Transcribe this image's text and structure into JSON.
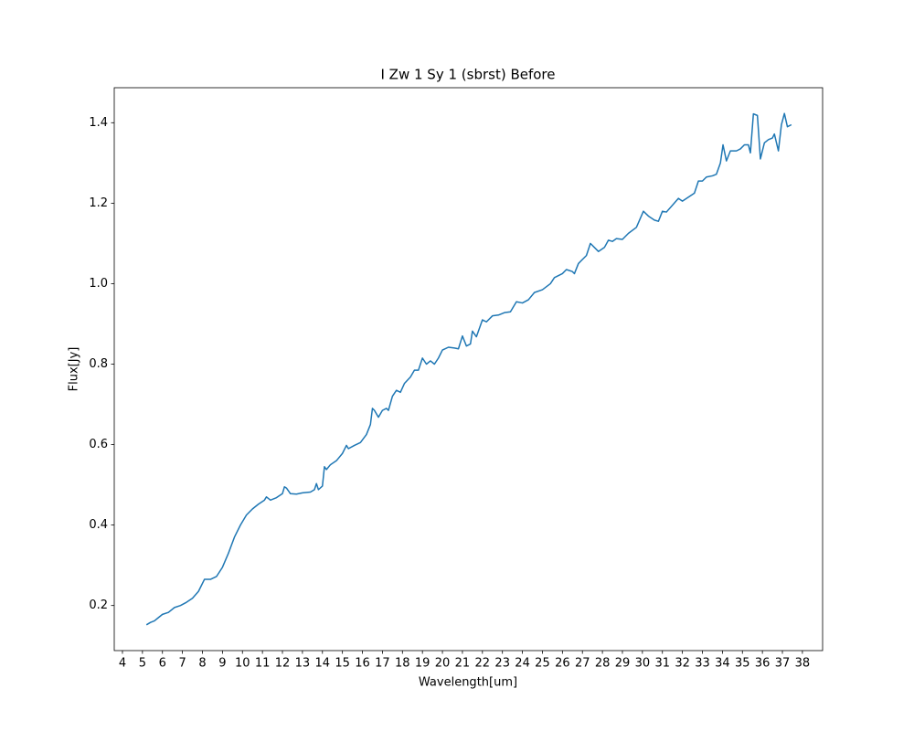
{
  "chart_data": {
    "type": "line",
    "title": "I Zw 1 Sy 1 (sbrst) Before",
    "x_label": "Wavelength[um]",
    "y_label": "Flux[Jy]",
    "x": [
      5.2,
      5.4,
      5.6,
      5.8,
      6.0,
      6.3,
      6.6,
      6.9,
      7.2,
      7.5,
      7.8,
      8.1,
      8.4,
      8.7,
      9.0,
      9.3,
      9.6,
      9.9,
      10.2,
      10.5,
      10.8,
      11.1,
      11.2,
      11.4,
      11.7,
      12.0,
      12.1,
      12.2,
      12.4,
      12.7,
      13.0,
      13.4,
      13.6,
      13.7,
      13.8,
      14.0,
      14.1,
      14.2,
      14.4,
      14.7,
      15.0,
      15.2,
      15.3,
      15.6,
      15.9,
      16.2,
      16.4,
      16.5,
      16.6,
      16.8,
      17.0,
      17.2,
      17.3,
      17.5,
      17.7,
      17.9,
      18.1,
      18.4,
      18.6,
      18.8,
      19.0,
      19.2,
      19.4,
      19.6,
      19.8,
      20.0,
      20.3,
      20.6,
      20.8,
      21.0,
      21.2,
      21.4,
      21.5,
      21.7,
      22.0,
      22.2,
      22.5,
      22.8,
      23.1,
      23.4,
      23.7,
      24.0,
      24.3,
      24.6,
      25.0,
      25.4,
      25.6,
      26.0,
      26.2,
      26.5,
      26.6,
      26.8,
      27.2,
      27.4,
      27.6,
      27.8,
      28.1,
      28.3,
      28.5,
      28.7,
      29.0,
      29.3,
      29.7,
      30.05,
      30.3,
      30.6,
      30.8,
      31.0,
      31.2,
      31.5,
      31.8,
      32.0,
      32.3,
      32.6,
      32.8,
      33.0,
      33.2,
      33.5,
      33.7,
      33.9,
      34.03,
      34.2,
      34.4,
      34.7,
      34.9,
      35.1,
      35.3,
      35.4,
      35.55,
      35.75,
      35.9,
      36.1,
      36.3,
      36.5,
      36.6,
      36.8,
      36.95,
      37.1,
      37.25,
      37.45
    ],
    "series": [
      {
        "name": "I Zw 1",
        "color": "#1f77b4",
        "values": [
          0.152,
          0.158,
          0.162,
          0.17,
          0.178,
          0.183,
          0.195,
          0.2,
          0.208,
          0.218,
          0.235,
          0.265,
          0.265,
          0.272,
          0.295,
          0.33,
          0.37,
          0.4,
          0.425,
          0.44,
          0.452,
          0.462,
          0.47,
          0.462,
          0.468,
          0.478,
          0.495,
          0.492,
          0.478,
          0.477,
          0.48,
          0.482,
          0.488,
          0.503,
          0.488,
          0.497,
          0.545,
          0.538,
          0.55,
          0.56,
          0.578,
          0.598,
          0.59,
          0.598,
          0.605,
          0.625,
          0.65,
          0.69,
          0.685,
          0.668,
          0.685,
          0.69,
          0.685,
          0.72,
          0.735,
          0.73,
          0.752,
          0.768,
          0.785,
          0.785,
          0.815,
          0.8,
          0.808,
          0.8,
          0.815,
          0.835,
          0.842,
          0.84,
          0.838,
          0.87,
          0.845,
          0.85,
          0.882,
          0.868,
          0.91,
          0.905,
          0.92,
          0.922,
          0.928,
          0.93,
          0.955,
          0.952,
          0.96,
          0.978,
          0.985,
          1.0,
          1.015,
          1.025,
          1.035,
          1.03,
          1.025,
          1.05,
          1.07,
          1.1,
          1.09,
          1.08,
          1.09,
          1.108,
          1.105,
          1.112,
          1.11,
          1.125,
          1.14,
          1.18,
          1.168,
          1.158,
          1.155,
          1.18,
          1.178,
          1.195,
          1.212,
          1.205,
          1.215,
          1.225,
          1.255,
          1.255,
          1.265,
          1.268,
          1.272,
          1.3,
          1.345,
          1.305,
          1.33,
          1.33,
          1.335,
          1.345,
          1.345,
          1.325,
          1.422,
          1.418,
          1.31,
          1.35,
          1.358,
          1.362,
          1.372,
          1.33,
          1.395,
          1.423,
          1.39,
          1.395
        ]
      }
    ],
    "xlim": [
      3.59,
      39.01
    ],
    "ylim": [
      0.088,
      1.487
    ],
    "xticks": [
      4,
      5,
      6,
      7,
      8,
      9,
      10,
      11,
      12,
      13,
      14,
      15,
      16,
      17,
      18,
      19,
      20,
      21,
      22,
      23,
      24,
      25,
      26,
      27,
      28,
      29,
      30,
      31,
      32,
      33,
      34,
      35,
      36,
      37,
      38
    ],
    "yticks": [
      0.2,
      0.4,
      0.6,
      0.8,
      {
        "value": 1,
        "label": "1.0"
      },
      1.2,
      1.4
    ],
    "grid": false
  }
}
